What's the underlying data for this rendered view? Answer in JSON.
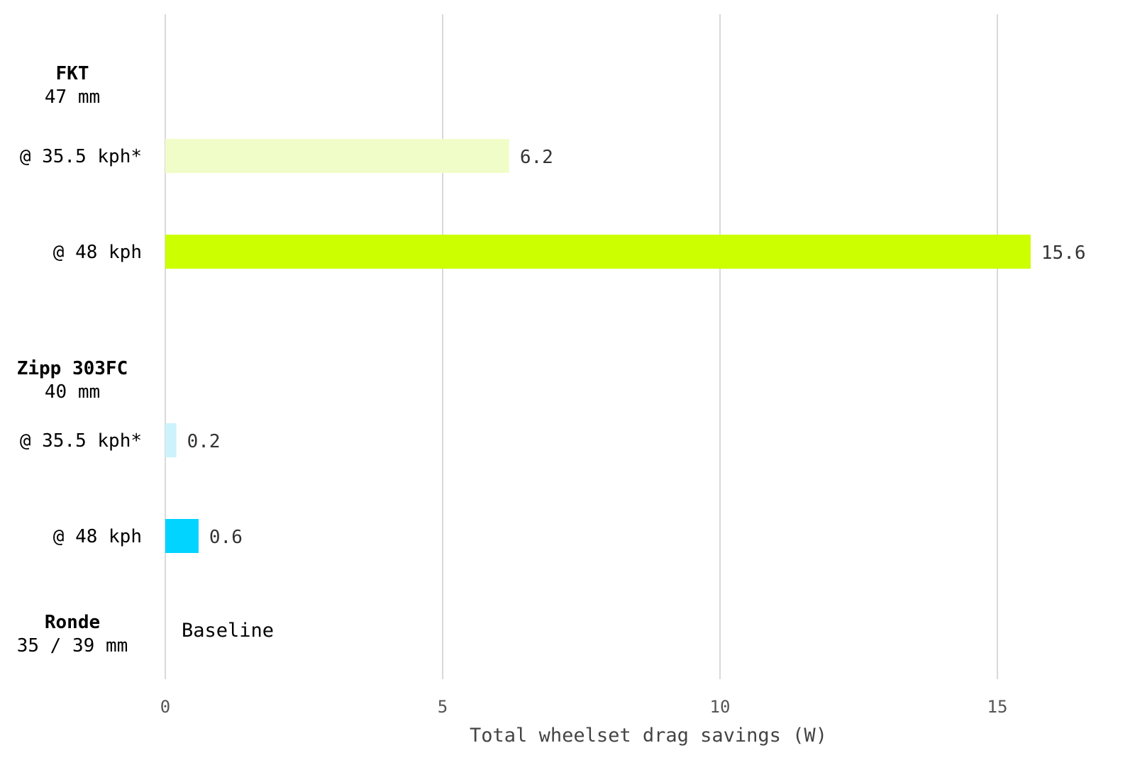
{
  "chart_data": {
    "type": "bar",
    "orientation": "horizontal",
    "xlabel": "Total wheelset drag savings (W)",
    "xlim": [
      0,
      17
    ],
    "xticks": [
      0,
      5,
      10,
      15
    ],
    "grid": "vertical",
    "groups": [
      {
        "title": "FKT",
        "subtitle": "47 mm",
        "bars": [
          {
            "label": "@ 35.5 kph*",
            "value": 6.2,
            "value_label": "6.2",
            "color": "#f1fdc9"
          },
          {
            "label": "@ 48 kph",
            "value": 15.6,
            "value_label": "15.6",
            "color": "#ccff00"
          }
        ]
      },
      {
        "title": "Zipp 303FC",
        "subtitle": "40 mm",
        "bars": [
          {
            "label": "@ 35.5 kph*",
            "value": 0.2,
            "value_label": "0.2",
            "color": "#ccf3fc"
          },
          {
            "label": "@ 48 kph",
            "value": 0.6,
            "value_label": "0.6",
            "color": "#00d4ff"
          }
        ]
      },
      {
        "title": "Ronde",
        "subtitle": "35 / 39 mm",
        "bars": [],
        "note": "Baseline"
      }
    ]
  }
}
